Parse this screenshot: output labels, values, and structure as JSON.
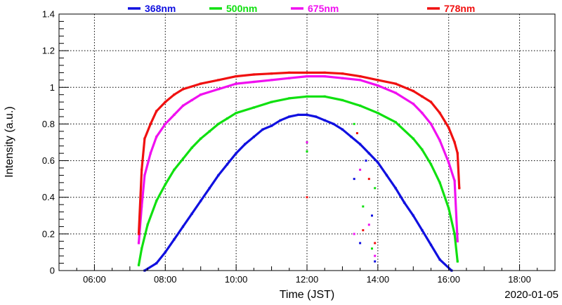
{
  "chart_data": {
    "type": "scatter",
    "title": "",
    "xlabel": "Time (JST)",
    "ylabel": "Intensity (a.u.)",
    "date": "2020-01-05",
    "xlim": [
      "05:00",
      "19:00"
    ],
    "ylim": [
      0,
      1.4
    ],
    "x_tick_labels": [
      "06:00",
      "08:00",
      "10:00",
      "12:00",
      "14:00",
      "16:00",
      "18:00"
    ],
    "y_tick_labels": [
      "0",
      "0.2",
      "0.4",
      "0.6",
      "0.8",
      "1",
      "1.2",
      "1.4"
    ],
    "grid": true,
    "legend_position": "top",
    "series": [
      {
        "name": "368nm",
        "color": "#1010e0",
        "points": [
          [
            "07:25",
            0.0
          ],
          [
            "07:45",
            0.04
          ],
          [
            "08:00",
            0.1
          ],
          [
            "08:15",
            0.17
          ],
          [
            "08:30",
            0.24
          ],
          [
            "08:45",
            0.31
          ],
          [
            "09:00",
            0.38
          ],
          [
            "09:15",
            0.45
          ],
          [
            "09:30",
            0.52
          ],
          [
            "09:45",
            0.58
          ],
          [
            "10:00",
            0.64
          ],
          [
            "10:15",
            0.69
          ],
          [
            "10:30",
            0.73
          ],
          [
            "10:45",
            0.77
          ],
          [
            "11:00",
            0.79
          ],
          [
            "11:15",
            0.82
          ],
          [
            "11:30",
            0.84
          ],
          [
            "11:45",
            0.85
          ],
          [
            "12:00",
            0.85
          ],
          [
            "12:15",
            0.84
          ],
          [
            "12:30",
            0.82
          ],
          [
            "12:45",
            0.8
          ],
          [
            "13:00",
            0.77
          ],
          [
            "13:15",
            0.73
          ],
          [
            "13:30",
            0.69
          ],
          [
            "13:45",
            0.64
          ],
          [
            "14:00",
            0.59
          ],
          [
            "14:15",
            0.52
          ],
          [
            "14:30",
            0.45
          ],
          [
            "14:45",
            0.37
          ],
          [
            "15:00",
            0.3
          ],
          [
            "15:15",
            0.22
          ],
          [
            "15:30",
            0.14
          ],
          [
            "15:45",
            0.06
          ],
          [
            "16:05",
            0.0
          ]
        ]
      },
      {
        "name": "500nm",
        "color": "#10e010",
        "points": [
          [
            "07:15",
            0.03
          ],
          [
            "07:20",
            0.12
          ],
          [
            "07:30",
            0.25
          ],
          [
            "07:45",
            0.38
          ],
          [
            "08:00",
            0.47
          ],
          [
            "08:15",
            0.55
          ],
          [
            "08:30",
            0.61
          ],
          [
            "08:45",
            0.67
          ],
          [
            "09:00",
            0.72
          ],
          [
            "09:15",
            0.76
          ],
          [
            "09:30",
            0.8
          ],
          [
            "09:45",
            0.83
          ],
          [
            "10:00",
            0.86
          ],
          [
            "10:30",
            0.89
          ],
          [
            "11:00",
            0.92
          ],
          [
            "11:30",
            0.94
          ],
          [
            "12:00",
            0.95
          ],
          [
            "12:30",
            0.95
          ],
          [
            "13:00",
            0.93
          ],
          [
            "13:30",
            0.9
          ],
          [
            "14:00",
            0.86
          ],
          [
            "14:30",
            0.81
          ],
          [
            "15:00",
            0.72
          ],
          [
            "15:15",
            0.66
          ],
          [
            "15:30",
            0.58
          ],
          [
            "15:45",
            0.48
          ],
          [
            "16:00",
            0.34
          ],
          [
            "16:10",
            0.2
          ],
          [
            "16:15",
            0.05
          ]
        ]
      },
      {
        "name": "675nm",
        "color": "#f010f0",
        "points": [
          [
            "07:15",
            0.15
          ],
          [
            "07:20",
            0.35
          ],
          [
            "07:25",
            0.52
          ],
          [
            "07:35",
            0.64
          ],
          [
            "07:45",
            0.73
          ],
          [
            "08:00",
            0.8
          ],
          [
            "08:15",
            0.85
          ],
          [
            "08:30",
            0.9
          ],
          [
            "08:45",
            0.93
          ],
          [
            "09:00",
            0.96
          ],
          [
            "09:30",
            0.99
          ],
          [
            "10:00",
            1.02
          ],
          [
            "10:30",
            1.03
          ],
          [
            "11:00",
            1.04
          ],
          [
            "11:30",
            1.05
          ],
          [
            "12:00",
            1.06
          ],
          [
            "12:30",
            1.06
          ],
          [
            "13:00",
            1.05
          ],
          [
            "13:30",
            1.04
          ],
          [
            "14:00",
            1.01
          ],
          [
            "14:30",
            0.97
          ],
          [
            "15:00",
            0.91
          ],
          [
            "15:15",
            0.86
          ],
          [
            "15:30",
            0.8
          ],
          [
            "15:45",
            0.71
          ],
          [
            "16:00",
            0.59
          ],
          [
            "16:10",
            0.49
          ],
          [
            "16:15",
            0.16
          ]
        ]
      },
      {
        "name": "778nm",
        "color": "#f01010",
        "points": [
          [
            "07:15",
            0.2
          ],
          [
            "07:20",
            0.55
          ],
          [
            "07:25",
            0.72
          ],
          [
            "07:35",
            0.8
          ],
          [
            "07:45",
            0.87
          ],
          [
            "08:00",
            0.92
          ],
          [
            "08:15",
            0.96
          ],
          [
            "08:30",
            0.99
          ],
          [
            "09:00",
            1.02
          ],
          [
            "09:30",
            1.04
          ],
          [
            "10:00",
            1.06
          ],
          [
            "10:30",
            1.07
          ],
          [
            "11:00",
            1.075
          ],
          [
            "11:30",
            1.08
          ],
          [
            "12:00",
            1.08
          ],
          [
            "12:30",
            1.08
          ],
          [
            "13:00",
            1.075
          ],
          [
            "13:30",
            1.06
          ],
          [
            "14:00",
            1.04
          ],
          [
            "14:30",
            1.02
          ],
          [
            "15:00",
            0.98
          ],
          [
            "15:15",
            0.95
          ],
          [
            "15:30",
            0.92
          ],
          [
            "15:45",
            0.86
          ],
          [
            "16:00",
            0.78
          ],
          [
            "16:10",
            0.7
          ],
          [
            "16:15",
            0.64
          ],
          [
            "16:18",
            0.45
          ]
        ]
      }
    ],
    "scattered_points": [
      {
        "series": "368nm",
        "x": "13:20",
        "y": 0.5
      },
      {
        "series": "368nm",
        "x": "13:30",
        "y": 0.15
      },
      {
        "series": "368nm",
        "x": "13:40",
        "y": 0.6
      },
      {
        "series": "368nm",
        "x": "13:50",
        "y": 0.3
      },
      {
        "series": "368nm",
        "x": "13:55",
        "y": 0.05
      },
      {
        "series": "500nm",
        "x": "12:00",
        "y": 0.65
      },
      {
        "series": "500nm",
        "x": "13:20",
        "y": 0.8
      },
      {
        "series": "500nm",
        "x": "13:35",
        "y": 0.35
      },
      {
        "series": "500nm",
        "x": "13:50",
        "y": 0.12
      },
      {
        "series": "500nm",
        "x": "13:55",
        "y": 0.45
      },
      {
        "series": "675nm",
        "x": "12:00",
        "y": 0.7
      },
      {
        "series": "675nm",
        "x": "13:20",
        "y": 0.2
      },
      {
        "series": "675nm",
        "x": "13:30",
        "y": 0.55
      },
      {
        "series": "675nm",
        "x": "13:45",
        "y": 0.25
      },
      {
        "series": "675nm",
        "x": "13:55",
        "y": 0.08
      },
      {
        "series": "778nm",
        "x": "12:00",
        "y": 0.4
      },
      {
        "series": "778nm",
        "x": "13:25",
        "y": 0.75
      },
      {
        "series": "778nm",
        "x": "13:35",
        "y": 0.22
      },
      {
        "series": "778nm",
        "x": "13:45",
        "y": 0.5
      },
      {
        "series": "778nm",
        "x": "13:55",
        "y": 0.15
      }
    ]
  }
}
